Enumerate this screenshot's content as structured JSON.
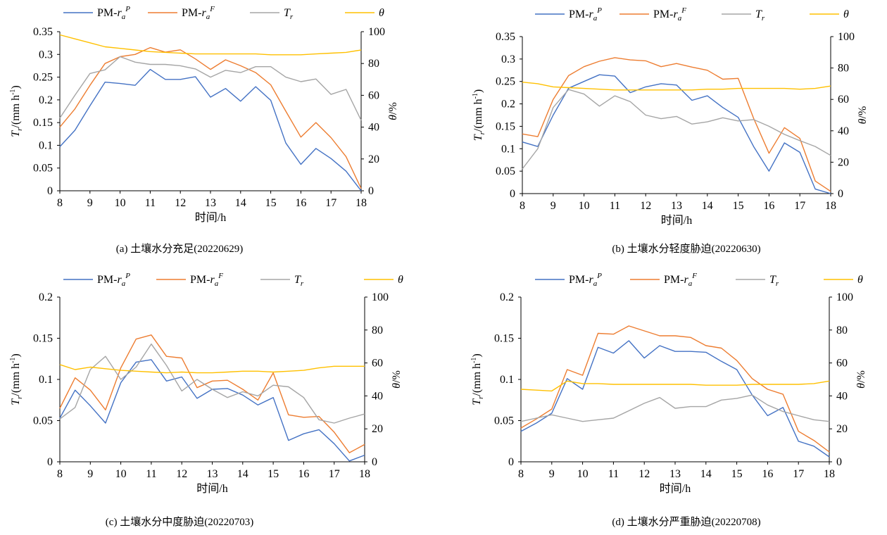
{
  "legend_entries": {
    "pm_p": {
      "base": "PM-",
      "main": "r",
      "sub": "a",
      "sup": "P"
    },
    "pm_f": {
      "base": "PM-",
      "main": "r",
      "sub": "a",
      "sup": "F"
    },
    "tr": {
      "main": "T",
      "sub": "r"
    },
    "theta": {
      "main": "θ"
    }
  },
  "series_colors": {
    "pm_p": "#4472C4",
    "pm_f": "#ED7D31",
    "tr": "#A5A5A5",
    "theta": "#FFC000"
  },
  "axis_labels": {
    "xlabel": "时间/h",
    "ylabel_main": "T",
    "ylabel_sub": "r",
    "ylabel_unit": "/(mm h",
    "ylabel_sup": "-1",
    "ylabel_close": ")",
    "y2label_main": "θ",
    "y2label_unit": "/%"
  },
  "chart_data": [
    {
      "type": "line",
      "caption": "(a) 土壤水分充足(20220629)",
      "x": [
        8,
        8.5,
        9,
        9.5,
        10,
        10.5,
        11,
        11.5,
        12,
        12.5,
        13,
        13.5,
        14,
        14.5,
        15,
        15.5,
        16,
        16.5,
        17,
        17.5,
        18
      ],
      "xticks": [
        "8",
        "9",
        "10",
        "11",
        "12",
        "13",
        "14",
        "15",
        "16",
        "17",
        "18"
      ],
      "ylim": [
        0,
        0.35
      ],
      "yticks": [
        "0",
        "0.05",
        "0.1",
        "0.15",
        "0.2",
        "0.25",
        "0.3",
        "0.35"
      ],
      "y2lim": [
        0,
        100
      ],
      "y2ticks": [
        "0",
        "20",
        "40",
        "60",
        "80",
        "100"
      ],
      "series": [
        {
          "key": "pm_p",
          "axis": "left",
          "values": [
            0.097,
            0.133,
            0.187,
            0.239,
            0.236,
            0.232,
            0.267,
            0.245,
            0.245,
            0.251,
            0.206,
            0.225,
            0.197,
            0.229,
            0.199,
            0.105,
            0.058,
            0.093,
            0.071,
            0.043,
            0.0
          ]
        },
        {
          "key": "pm_f",
          "axis": "left",
          "values": [
            0.14,
            0.18,
            0.232,
            0.28,
            0.295,
            0.3,
            0.315,
            0.305,
            0.31,
            0.29,
            0.267,
            0.288,
            0.275,
            0.26,
            0.233,
            0.175,
            0.118,
            0.15,
            0.117,
            0.075,
            0.005
          ]
        },
        {
          "key": "tr",
          "axis": "left",
          "values": [
            0.16,
            0.21,
            0.258,
            0.266,
            0.295,
            0.283,
            0.278,
            0.278,
            0.275,
            0.268,
            0.25,
            0.265,
            0.26,
            0.273,
            0.273,
            0.25,
            0.24,
            0.246,
            0.212,
            0.223,
            0.155
          ]
        },
        {
          "key": "theta",
          "axis": "right",
          "values": [
            98,
            95.5,
            93,
            90.5,
            89.5,
            88.5,
            87.5,
            87,
            86.5,
            86,
            86,
            86,
            86,
            86,
            85.5,
            85.5,
            85.5,
            86,
            86.5,
            87,
            88.5
          ]
        }
      ]
    },
    {
      "type": "line",
      "caption": "(b) 土壤水分轻度胁迫(20220630)",
      "x": [
        8,
        8.5,
        9,
        9.5,
        10,
        10.5,
        11,
        11.5,
        12,
        12.5,
        13,
        13.5,
        14,
        14.5,
        15,
        15.5,
        16,
        16.5,
        17,
        17.5,
        18
      ],
      "xticks": [
        "8",
        "9",
        "10",
        "11",
        "12",
        "13",
        "14",
        "15",
        "16",
        "17",
        "18"
      ],
      "ylim": [
        0,
        0.35
      ],
      "yticks": [
        "0",
        "0.05",
        "0.1",
        "0.15",
        "0.2",
        "0.25",
        "0.3",
        "0.35"
      ],
      "y2lim": [
        0,
        100
      ],
      "y2ticks": [
        "0",
        "20",
        "40",
        "60",
        "80",
        "100"
      ],
      "series": [
        {
          "key": "pm_p",
          "axis": "left",
          "values": [
            0.115,
            0.105,
            0.175,
            0.235,
            0.25,
            0.265,
            0.262,
            0.225,
            0.238,
            0.245,
            0.242,
            0.208,
            0.218,
            0.192,
            0.17,
            0.105,
            0.05,
            0.113,
            0.092,
            0.01,
            0.0
          ]
        },
        {
          "key": "pm_f",
          "axis": "left",
          "values": [
            0.133,
            0.127,
            0.21,
            0.263,
            0.283,
            0.295,
            0.303,
            0.298,
            0.296,
            0.283,
            0.29,
            0.282,
            0.275,
            0.255,
            0.257,
            0.168,
            0.09,
            0.147,
            0.123,
            0.028,
            0.005
          ]
        },
        {
          "key": "tr",
          "axis": "left",
          "values": [
            0.055,
            0.1,
            0.192,
            0.232,
            0.222,
            0.195,
            0.218,
            0.205,
            0.175,
            0.167,
            0.172,
            0.155,
            0.16,
            0.169,
            0.162,
            0.165,
            0.15,
            0.132,
            0.118,
            0.105,
            0.085
          ]
        },
        {
          "key": "theta",
          "axis": "right",
          "values": [
            71,
            70,
            68,
            67.5,
            67,
            66.5,
            66,
            66,
            66,
            66,
            66,
            66,
            66.5,
            66.5,
            67,
            67,
            67,
            67,
            66.5,
            67,
            68.5
          ]
        }
      ]
    },
    {
      "type": "line",
      "caption": "(c) 土壤水分中度胁迫(20220703)",
      "x": [
        8,
        8.5,
        9,
        9.5,
        10,
        10.5,
        11,
        11.5,
        12,
        12.5,
        13,
        13.5,
        14,
        14.5,
        15,
        15.5,
        16,
        16.5,
        17,
        17.5,
        18
      ],
      "xticks": [
        "8",
        "9",
        "10",
        "11",
        "12",
        "13",
        "14",
        "15",
        "16",
        "17",
        "18"
      ],
      "ylim": [
        0,
        0.2
      ],
      "yticks": [
        "0",
        "0.05",
        "0.1",
        "0.15",
        "0.2"
      ],
      "y2lim": [
        0,
        100
      ],
      "y2ticks": [
        "0",
        "20",
        "40",
        "60",
        "80",
        "100"
      ],
      "series": [
        {
          "key": "pm_p",
          "axis": "left",
          "values": [
            0.053,
            0.087,
            0.068,
            0.047,
            0.096,
            0.121,
            0.124,
            0.098,
            0.103,
            0.077,
            0.088,
            0.089,
            0.081,
            0.069,
            0.078,
            0.026,
            0.034,
            0.039,
            0.022,
            0.001,
            0.008
          ]
        },
        {
          "key": "pm_f",
          "axis": "left",
          "values": [
            0.065,
            0.102,
            0.087,
            0.063,
            0.114,
            0.149,
            0.154,
            0.128,
            0.126,
            0.09,
            0.098,
            0.099,
            0.088,
            0.075,
            0.108,
            0.057,
            0.054,
            0.055,
            0.036,
            0.011,
            0.021
          ]
        },
        {
          "key": "tr",
          "axis": "left",
          "values": [
            0.052,
            0.066,
            0.112,
            0.128,
            0.1,
            0.115,
            0.143,
            0.117,
            0.086,
            0.1,
            0.088,
            0.078,
            0.085,
            0.08,
            0.093,
            0.091,
            0.078,
            0.051,
            0.047,
            0.053,
            0.058
          ]
        },
        {
          "key": "theta",
          "axis": "right",
          "values": [
            59,
            56,
            57.5,
            56.5,
            55.5,
            55,
            54.5,
            54,
            54.5,
            54,
            54,
            54.5,
            55,
            55,
            54.5,
            55,
            55.5,
            57,
            58,
            58,
            58
          ]
        }
      ]
    },
    {
      "type": "line",
      "caption": "(d) 土壤水分严重胁迫(20220708)",
      "x": [
        8,
        8.5,
        9,
        9.5,
        10,
        10.5,
        11,
        11.5,
        12,
        12.5,
        13,
        13.5,
        14,
        14.5,
        15,
        15.5,
        16,
        16.5,
        17,
        17.5,
        18
      ],
      "xticks": [
        "8",
        "9",
        "10",
        "11",
        "12",
        "13",
        "14",
        "15",
        "16",
        "17",
        "18"
      ],
      "ylim": [
        0,
        0.2
      ],
      "yticks": [
        "0",
        "0.05",
        "0.1",
        "0.15",
        "0.2"
      ],
      "y2lim": [
        0,
        100
      ],
      "y2ticks": [
        "0",
        "20",
        "40",
        "60",
        "80",
        "100"
      ],
      "series": [
        {
          "key": "pm_p",
          "axis": "left",
          "values": [
            0.037,
            0.047,
            0.059,
            0.101,
            0.088,
            0.139,
            0.132,
            0.147,
            0.126,
            0.141,
            0.134,
            0.134,
            0.133,
            0.122,
            0.112,
            0.081,
            0.056,
            0.066,
            0.025,
            0.019,
            0.006
          ]
        },
        {
          "key": "pm_f",
          "axis": "left",
          "values": [
            0.041,
            0.052,
            0.064,
            0.112,
            0.105,
            0.156,
            0.155,
            0.165,
            0.159,
            0.153,
            0.153,
            0.151,
            0.141,
            0.138,
            0.123,
            0.101,
            0.088,
            0.082,
            0.037,
            0.026,
            0.012
          ]
        },
        {
          "key": "tr",
          "axis": "left",
          "values": [
            0.049,
            0.053,
            0.057,
            0.053,
            0.049,
            0.051,
            0.053,
            0.062,
            0.071,
            0.078,
            0.065,
            0.067,
            0.067,
            0.075,
            0.077,
            0.081,
            0.069,
            0.061,
            0.056,
            0.051,
            0.049
          ]
        },
        {
          "key": "theta",
          "axis": "right",
          "values": [
            44,
            43.5,
            43,
            49,
            47.5,
            47.5,
            47,
            47,
            47,
            47,
            47,
            47,
            46.5,
            46.5,
            46.5,
            47,
            47,
            47,
            47,
            47.5,
            49
          ]
        }
      ]
    }
  ]
}
